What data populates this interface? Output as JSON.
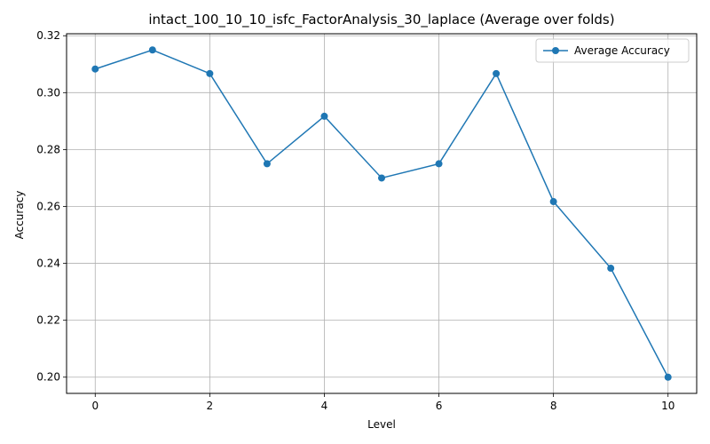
{
  "chart_data": {
    "type": "line",
    "title": "intact_100_10_10_isfc_FactorAnalysis_30_laplace (Average over folds)",
    "xlabel": "Level",
    "ylabel": "Accuracy",
    "x": [
      0,
      1,
      2,
      3,
      4,
      5,
      6,
      7,
      8,
      9,
      10
    ],
    "series": [
      {
        "name": "Average Accuracy",
        "values": [
          0.3083,
          0.315,
          0.3067,
          0.275,
          0.2917,
          0.27,
          0.275,
          0.3067,
          0.2617,
          0.2383,
          0.2
        ],
        "color": "#1f77b4",
        "marker": "circle"
      }
    ],
    "xlim": [
      -0.5,
      10.5
    ],
    "ylim": [
      0.1943,
      0.3207
    ],
    "xticks": [
      0,
      2,
      4,
      6,
      8,
      10
    ],
    "xtick_labels": [
      "0",
      "2",
      "4",
      "6",
      "8",
      "10"
    ],
    "yticks": [
      0.2,
      0.22,
      0.24,
      0.26,
      0.28,
      0.3,
      0.32
    ],
    "ytick_labels": [
      "0.20",
      "0.22",
      "0.24",
      "0.26",
      "0.28",
      "0.30",
      "0.32"
    ],
    "grid": true,
    "grid_color": "#b0b0b0",
    "legend_position": "top-right"
  }
}
